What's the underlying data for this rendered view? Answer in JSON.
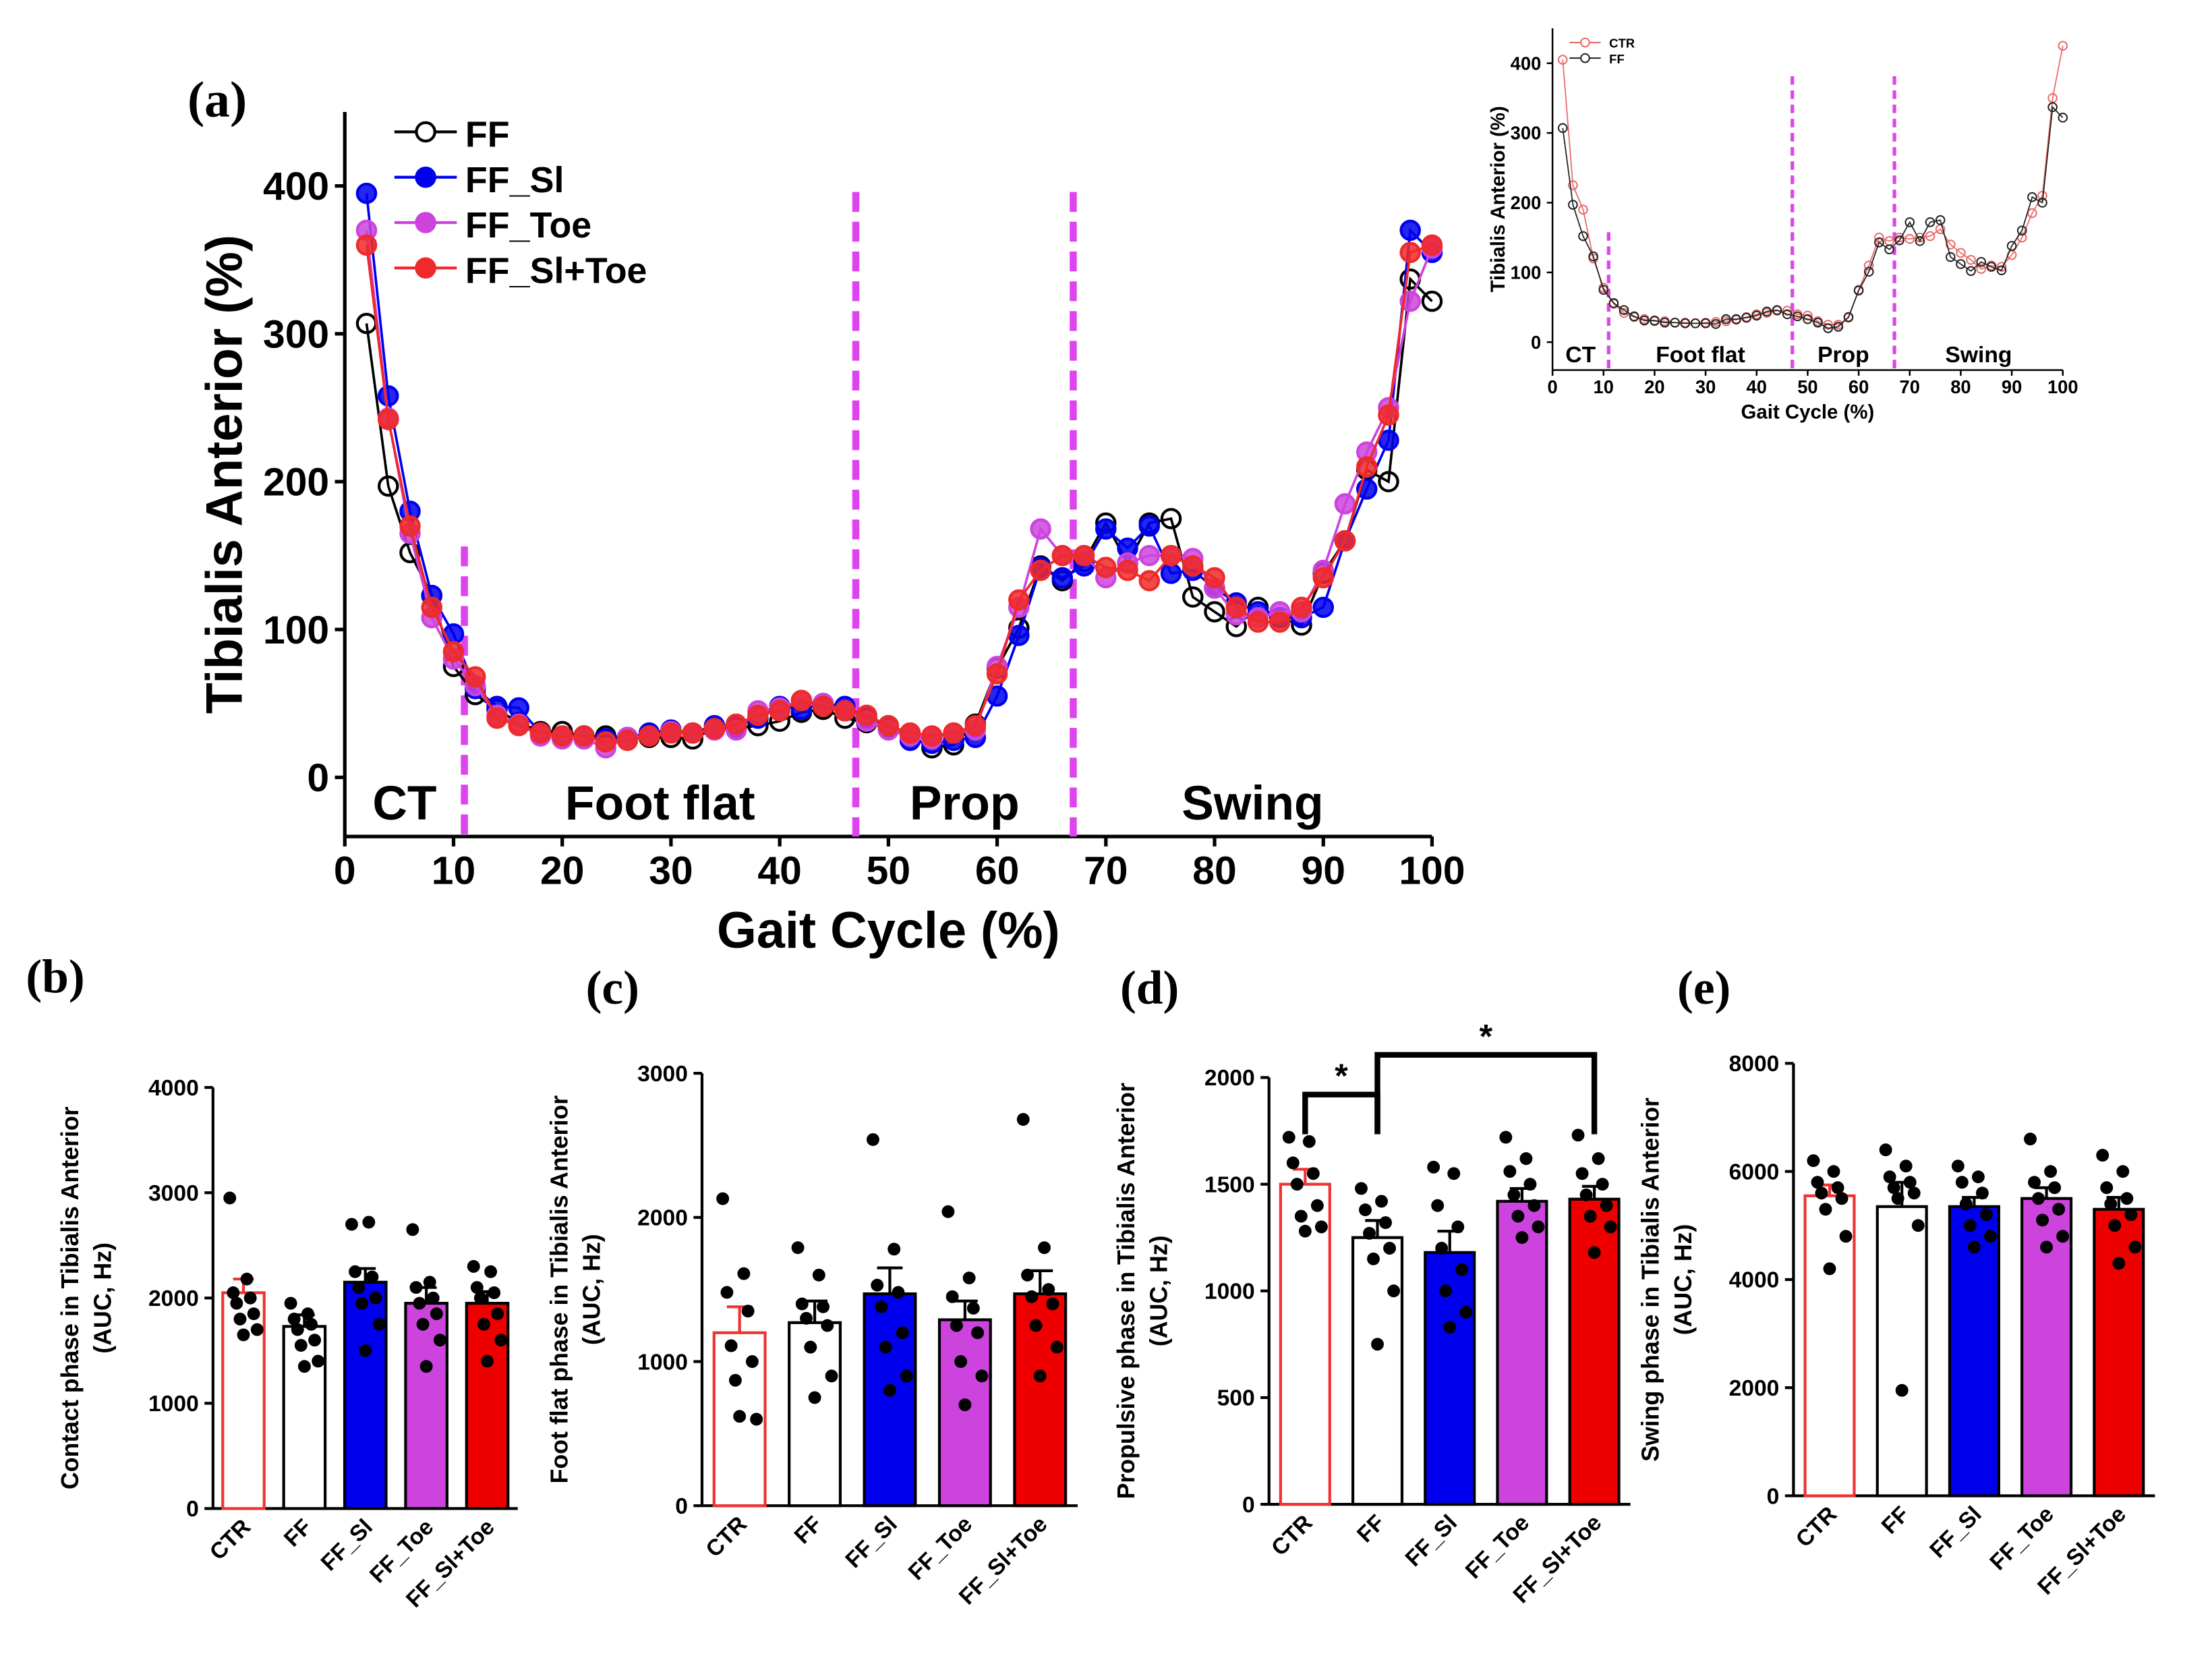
{
  "chart_data": [
    {
      "type": "line",
      "panel_label": "(a)",
      "xlabel": "Gait Cycle (%)",
      "ylabel": "Tibialis Anterior (%)",
      "xlim": [
        0,
        100
      ],
      "xticks": [
        0,
        10,
        20,
        30,
        40,
        50,
        60,
        70,
        80,
        90,
        100
      ],
      "ylim": [
        -40,
        450
      ],
      "yticks": [
        0,
        100,
        200,
        300,
        400
      ],
      "vlines": [
        11,
        47,
        67
      ],
      "vline_color": "#dd44ee",
      "annotations": [
        "CT",
        "Foot flat",
        "Prop",
        "Swing"
      ],
      "x": [
        2,
        4,
        6,
        8,
        10,
        12,
        14,
        16,
        18,
        20,
        22,
        24,
        26,
        28,
        30,
        32,
        34,
        36,
        38,
        40,
        42,
        44,
        46,
        48,
        50,
        52,
        54,
        56,
        58,
        60,
        62,
        64,
        66,
        68,
        70,
        72,
        74,
        76,
        78,
        80,
        82,
        84,
        86,
        88,
        90,
        92,
        94,
        96,
        98,
        100
      ],
      "series": [
        {
          "name": "FF",
          "color": "#000000",
          "marker": "open",
          "values": [
            307,
            197,
            152,
            123,
            75,
            56,
            46,
            37,
            31,
            31,
            28,
            28,
            27,
            27,
            27,
            26,
            33,
            33,
            35,
            38,
            44,
            46,
            40,
            37,
            33,
            28,
            20,
            22,
            36,
            74,
            101,
            143,
            133,
            146,
            172,
            145,
            172,
            175,
            122,
            112,
            102,
            115,
            108,
            103,
            138,
            160,
            208,
            200,
            337,
            322
          ]
        },
        {
          "name": "FF_Sl",
          "color": "#0000ee",
          "marker": "filled",
          "values": [
            395,
            258,
            180,
            123,
            97,
            60,
            48,
            47,
            30,
            28,
            28,
            26,
            27,
            30,
            32,
            30,
            35,
            35,
            40,
            48,
            46,
            50,
            48,
            40,
            35,
            25,
            23,
            25,
            27,
            55,
            96,
            142,
            135,
            143,
            168,
            155,
            170,
            138,
            140,
            128,
            118,
            112,
            108,
            108,
            115,
            160,
            195,
            228,
            370,
            355
          ]
        },
        {
          "name": "FF_Toe",
          "color": "#cc44dd",
          "marker": "filled",
          "values": [
            370,
            243,
            165,
            108,
            80,
            62,
            42,
            36,
            28,
            26,
            26,
            20,
            27,
            28,
            31,
            30,
            32,
            32,
            45,
            47,
            52,
            50,
            45,
            38,
            32,
            28,
            26,
            30,
            32,
            75,
            115,
            168,
            150,
            150,
            135,
            145,
            150,
            150,
            148,
            128,
            110,
            108,
            112,
            112,
            140,
            185,
            220,
            250,
            322,
            358
          ]
        },
        {
          "name": "FF_Sl+Toe",
          "color": "#ee2a2a",
          "marker": "filled",
          "values": [
            360,
            242,
            170,
            115,
            85,
            68,
            40,
            35,
            30,
            28,
            28,
            24,
            25,
            28,
            30,
            30,
            33,
            36,
            42,
            45,
            52,
            48,
            45,
            42,
            35,
            30,
            28,
            30,
            35,
            70,
            120,
            140,
            150,
            150,
            142,
            140,
            133,
            150,
            143,
            135,
            115,
            105,
            105,
            115,
            135,
            160,
            210,
            245,
            355,
            360
          ]
        }
      ]
    },
    {
      "type": "line",
      "xlabel": "Gait Cycle (%)",
      "ylabel": "Tibialis Anterior (%)",
      "xlim": [
        0,
        100
      ],
      "xticks": [
        0,
        10,
        20,
        30,
        40,
        50,
        60,
        70,
        80,
        90,
        100
      ],
      "ylim": [
        -40,
        450
      ],
      "yticks": [
        0,
        100,
        200,
        300,
        400
      ],
      "vlines": [
        11,
        47,
        67
      ],
      "vline_color": "#dd44ee",
      "annotations": [
        "CT",
        "Foot flat",
        "Prop",
        "Swing"
      ],
      "x": [
        2,
        4,
        6,
        8,
        10,
        12,
        14,
        16,
        18,
        20,
        22,
        24,
        26,
        28,
        30,
        32,
        34,
        36,
        38,
        40,
        42,
        44,
        46,
        48,
        50,
        52,
        54,
        56,
        58,
        60,
        62,
        64,
        66,
        68,
        70,
        72,
        74,
        76,
        78,
        80,
        82,
        84,
        86,
        88,
        90,
        92,
        94,
        96,
        98,
        100
      ],
      "series": [
        {
          "name": "CTR",
          "color": "#e86a6a",
          "marker": "open",
          "values": [
            405,
            225,
            190,
            120,
            78,
            55,
            42,
            36,
            33,
            30,
            30,
            28,
            28,
            27,
            28,
            29,
            30,
            32,
            36,
            40,
            42,
            45,
            45,
            40,
            38,
            30,
            25,
            25,
            35,
            75,
            110,
            150,
            145,
            150,
            148,
            150,
            152,
            162,
            140,
            128,
            118,
            105,
            110,
            108,
            125,
            150,
            185,
            210,
            350,
            425
          ]
        },
        {
          "name": "FF",
          "color": "#222222",
          "marker": "open",
          "values": [
            307,
            197,
            152,
            123,
            75,
            56,
            46,
            37,
            31,
            31,
            28,
            28,
            27,
            27,
            27,
            26,
            33,
            33,
            35,
            38,
            44,
            46,
            40,
            37,
            33,
            28,
            20,
            22,
            36,
            74,
            101,
            143,
            133,
            146,
            172,
            145,
            172,
            175,
            122,
            112,
            102,
            115,
            108,
            103,
            138,
            160,
            208,
            200,
            337,
            322
          ]
        }
      ]
    },
    {
      "type": "bar",
      "panel_label": "(b)",
      "ylabel": [
        "Contact phase in Tibialis Anterior",
        "(AUC, Hz)"
      ],
      "categories": [
        "CTR",
        "FF",
        "FF_Sl",
        "FF_Toe",
        "FF_Sl+Toe"
      ],
      "colors": [
        "#ffffff",
        "#ffffff",
        "#0000ee",
        "#cc44dd",
        "#ee0000"
      ],
      "edge_colors": [
        "#ee3333",
        "#000000",
        "#000000",
        "#000000",
        "#000000"
      ],
      "ylim": [
        0,
        4000
      ],
      "yticks": [
        0,
        1000,
        2000,
        3000,
        4000
      ],
      "values": [
        2050,
        1730,
        2150,
        1950,
        1950
      ],
      "errors": [
        130,
        110,
        130,
        150,
        110
      ],
      "points": [
        [
          2950,
          2180,
          2050,
          2000,
          1950,
          1850,
          1800,
          1700,
          1650
        ],
        [
          1950,
          1850,
          1800,
          1750,
          1700,
          1600,
          1550,
          1400,
          1350
        ],
        [
          2700,
          2720,
          2250,
          2200,
          2100,
          2000,
          1950,
          1750,
          1500
        ],
        [
          2650,
          2150,
          2100,
          2000,
          1950,
          1850,
          1750,
          1600,
          1350
        ],
        [
          2300,
          2250,
          2100,
          2050,
          2000,
          1850,
          1750,
          1600,
          1400
        ]
      ]
    },
    {
      "type": "bar",
      "panel_label": "(c)",
      "ylabel": [
        "Foot flat phase in Tibialis Anterior",
        "(AUC, Hz)"
      ],
      "categories": [
        "CTR",
        "FF",
        "FF_Sl",
        "FF_Toe",
        "FF_Sl+Toe"
      ],
      "colors": [
        "#ffffff",
        "#ffffff",
        "#0000ee",
        "#cc44dd",
        "#ee0000"
      ],
      "edge_colors": [
        "#ee3333",
        "#000000",
        "#000000",
        "#000000",
        "#000000"
      ],
      "ylim": [
        0,
        3000
      ],
      "yticks": [
        0,
        1000,
        2000,
        3000
      ],
      "values": [
        1200,
        1270,
        1470,
        1290,
        1470
      ],
      "errors": [
        180,
        150,
        180,
        130,
        160
      ],
      "points": [
        [
          2130,
          1610,
          1480,
          1350,
          1110,
          1000,
          870,
          600,
          620
        ],
        [
          1790,
          1600,
          1400,
          1380,
          1300,
          1250,
          1100,
          900,
          750
        ],
        [
          2540,
          1780,
          1530,
          1480,
          1380,
          1200,
          1100,
          900,
          800
        ],
        [
          2040,
          1580,
          1450,
          1370,
          1250,
          1200,
          1000,
          900,
          700
        ],
        [
          2680,
          1790,
          1600,
          1500,
          1450,
          1400,
          1250,
          1100,
          900
        ]
      ]
    },
    {
      "type": "bar",
      "panel_label": "(d)",
      "ylabel": [
        "Propulsive phase in Tibialis Anterior",
        "(AUC, Hz)"
      ],
      "categories": [
        "CTR",
        "FF",
        "FF_Sl",
        "FF_Toe",
        "FF_Sl+Toe"
      ],
      "colors": [
        "#ffffff",
        "#ffffff",
        "#0000ee",
        "#cc44dd",
        "#ee0000"
      ],
      "edge_colors": [
        "#ee3333",
        "#000000",
        "#000000",
        "#000000",
        "#000000"
      ],
      "ylim": [
        0,
        2000
      ],
      "yticks": [
        0,
        500,
        1000,
        1500,
        2000
      ],
      "values": [
        1500,
        1250,
        1180,
        1420,
        1430
      ],
      "errors": [
        70,
        80,
        100,
        60,
        60
      ],
      "points": [
        [
          1720,
          1700,
          1600,
          1550,
          1500,
          1400,
          1350,
          1300,
          1280
        ],
        [
          1480,
          1420,
          1380,
          1320,
          1270,
          1200,
          1150,
          1000,
          750
        ],
        [
          1580,
          1550,
          1400,
          1300,
          1200,
          1100,
          1000,
          900,
          830
        ],
        [
          1720,
          1620,
          1560,
          1500,
          1450,
          1400,
          1350,
          1300,
          1250
        ],
        [
          1730,
          1620,
          1550,
          1500,
          1450,
          1400,
          1350,
          1300,
          1180
        ]
      ],
      "significance": [
        {
          "from": 0,
          "to": 1,
          "label": "*"
        },
        {
          "from": 1,
          "to": 4,
          "label": "*"
        }
      ]
    },
    {
      "type": "bar",
      "panel_label": "(e)",
      "ylabel": [
        "Swing phase in Tibialis Anterior",
        "(AUC, Hz)"
      ],
      "categories": [
        "CTR",
        "FF",
        "FF_Sl",
        "FF_Toe",
        "FF_Sl+Toe"
      ],
      "colors": [
        "#ffffff",
        "#ffffff",
        "#0000ee",
        "#cc44dd",
        "#ee0000"
      ],
      "edge_colors": [
        "#ee3333",
        "#000000",
        "#000000",
        "#000000",
        "#000000"
      ],
      "ylim": [
        0,
        8000
      ],
      "yticks": [
        0,
        2000,
        4000,
        6000,
        8000
      ],
      "values": [
        5550,
        5350,
        5350,
        5500,
        5300
      ],
      "errors": [
        200,
        450,
        170,
        200,
        220
      ],
      "points": [
        [
          6200,
          6000,
          5800,
          5700,
          5600,
          5500,
          5300,
          4800,
          4200
        ],
        [
          6400,
          6100,
          5900,
          5800,
          5700,
          5600,
          5500,
          5000,
          1950
        ],
        [
          6100,
          5900,
          5800,
          5600,
          5400,
          5200,
          5000,
          4800,
          4600
        ],
        [
          6600,
          6000,
          5800,
          5700,
          5500,
          5300,
          5100,
          4800,
          4600
        ],
        [
          6300,
          6000,
          5700,
          5500,
          5400,
          5200,
          5000,
          4600,
          4300
        ]
      ]
    }
  ]
}
